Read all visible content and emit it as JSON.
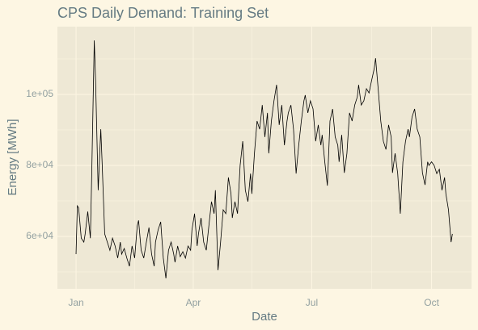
{
  "chart_data": {
    "type": "line",
    "title": "CPS Daily Demand: Training Set",
    "x_label": "Date",
    "y_label": "Energy [MWh]",
    "x": [
      1,
      2,
      3,
      5,
      7,
      8,
      10,
      12,
      13,
      15,
      16,
      18,
      20,
      21,
      23,
      25,
      27,
      29,
      31,
      33,
      35,
      36,
      38,
      40,
      42,
      44,
      46,
      48,
      49,
      51,
      53,
      55,
      57,
      59,
      61,
      62,
      64,
      66,
      68,
      70,
      72,
      74,
      76,
      77,
      79,
      81,
      83,
      85,
      87,
      89,
      90,
      92,
      94,
      95,
      97,
      99,
      101,
      103,
      105,
      107,
      108,
      110,
      112,
      114,
      116,
      118,
      120,
      121,
      123,
      125,
      127,
      129,
      131,
      133,
      135,
      136,
      138,
      140,
      142,
      144,
      146,
      148,
      149,
      151,
      153,
      155,
      157,
      159,
      161,
      163,
      164,
      166,
      168,
      170,
      172,
      174,
      176,
      177,
      179,
      181,
      183,
      185,
      187,
      189,
      190,
      192,
      194,
      196,
      198,
      200,
      202,
      203,
      205,
      207,
      209,
      211,
      213,
      215,
      217,
      218,
      220,
      222,
      224,
      226,
      228,
      230,
      231,
      233,
      235,
      237,
      239,
      241,
      243,
      244,
      246,
      248,
      250,
      252,
      254,
      256,
      257,
      259,
      261,
      263,
      265,
      267,
      269,
      271,
      272,
      274,
      276,
      278,
      280,
      282,
      284,
      285,
      287,
      289,
      290
    ],
    "values": [
      55000,
      68600,
      68000,
      59500,
      58400,
      60700,
      67000,
      59500,
      76600,
      115200,
      104000,
      73000,
      90200,
      81000,
      60700,
      58400,
      56100,
      59500,
      57300,
      53900,
      58400,
      55000,
      56600,
      53900,
      51600,
      57300,
      53900,
      63000,
      64500,
      56100,
      53900,
      58400,
      62500,
      55000,
      51600,
      58400,
      61800,
      64100,
      53900,
      48200,
      56100,
      58400,
      55000,
      52700,
      57300,
      54300,
      55700,
      53900,
      57300,
      56100,
      61800,
      66400,
      57300,
      60700,
      65200,
      58400,
      56100,
      63000,
      69800,
      66400,
      73000,
      50500,
      58400,
      67500,
      66400,
      76600,
      72000,
      65200,
      69800,
      66400,
      80000,
      86800,
      73000,
      69800,
      77700,
      72000,
      83400,
      92500,
      90200,
      97000,
      88000,
      94800,
      83400,
      92500,
      98200,
      102700,
      91400,
      97000,
      85700,
      92500,
      94800,
      97000,
      90200,
      77700,
      85700,
      92500,
      98200,
      99800,
      94800,
      98200,
      95900,
      86800,
      91400,
      85700,
      88600,
      81000,
      74300,
      92500,
      95900,
      88000,
      85700,
      81000,
      88600,
      77900,
      83400,
      94800,
      92500,
      97000,
      99300,
      102700,
      97000,
      98200,
      101600,
      100400,
      104000,
      107300,
      110200,
      101600,
      92500,
      86800,
      84500,
      91400,
      88000,
      77900,
      83400,
      77700,
      66400,
      81000,
      86800,
      90200,
      88000,
      93600,
      95900,
      90200,
      88000,
      77900,
      74500,
      81000,
      80000,
      81000,
      80000,
      77700,
      78900,
      73000,
      76600,
      72000,
      67500,
      58400,
      60700
    ],
    "color": "#000000",
    "xlim": [
      -13.3,
      304.7
    ],
    "xticks": [
      {
        "value": 1,
        "label": "Jan"
      },
      {
        "value": 91,
        "label": "Apr"
      },
      {
        "value": 182,
        "label": "Jul"
      },
      {
        "value": 274,
        "label": "Oct"
      }
    ],
    "x_minor_ticks": [
      46,
      136,
      228
    ],
    "ylim": [
      45227,
      119091
    ],
    "yticks": [
      {
        "value": 60000,
        "label": "6e+04"
      },
      {
        "value": 80000,
        "label": "8e+04"
      },
      {
        "value": 100000,
        "label": "1e+05"
      }
    ],
    "y_minor_ticks": [
      50000,
      70000,
      90000,
      110000
    ],
    "grid": true
  }
}
